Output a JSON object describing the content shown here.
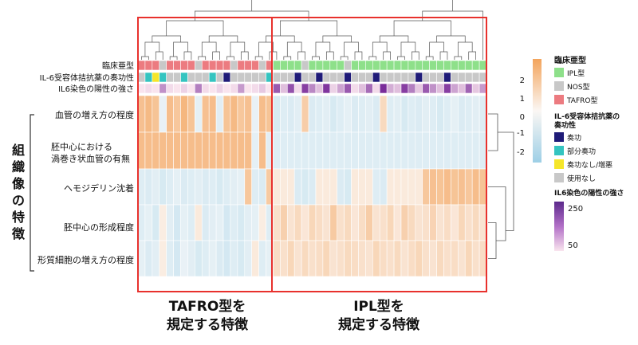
{
  "row_labels": [
    "血管の増え方の程度",
    "胚中心における",
    "渦巻き状血管の有無",
    "ヘモジデリン沈着",
    "胚中心の形成程度",
    "形質細胞の増え方の程度"
  ],
  "annotation_labels": [
    "臨床亜型",
    "IL-6受容体拮抗薬の奏功性",
    "IL6染色の陽性の強さ"
  ],
  "side_title": "組織像の特徴",
  "captions": {
    "tafro": [
      "TAFRO型を",
      "規定する特徴"
    ],
    "ipl": [
      "IPL型を",
      "規定する特徴"
    ]
  },
  "legends": {
    "colorbar_ticks": [
      "2",
      "1",
      "0",
      "-1",
      "-2"
    ],
    "subtype": {
      "title": "臨床亜型",
      "items": [
        {
          "label": "IPL型",
          "color": "#8ee08a"
        },
        {
          "label": "NOS型",
          "color": "#c8c8c8"
        },
        {
          "label": "TAFRO型",
          "color": "#ec7b80"
        }
      ]
    },
    "response": {
      "title": [
        "IL-6受容体拮抗薬の",
        "奏功性"
      ],
      "items": [
        {
          "label": "奏功",
          "color": "#1f1b78"
        },
        {
          "label": "部分奏功",
          "color": "#34c4c0"
        },
        {
          "label": "奏功なし/増悪",
          "color": "#f5e62a"
        },
        {
          "label": "使用なし",
          "color": "#c8c8c8"
        }
      ]
    },
    "staining": {
      "title": "IL6染色の陽性の強さ",
      "ticks": [
        "250",
        "50"
      ]
    }
  },
  "colors": {
    "high": "#f3a45c",
    "mid": "#fbe6d6",
    "low": "#9dcfe6",
    "highlight_box": "#e8312d"
  },
  "chart_data": {
    "type": "heatmap",
    "color_range": [
      -2.5,
      2.5
    ],
    "groups": [
      {
        "name": "TAFRO型を規定する特徴",
        "columns": 19
      },
      {
        "name": "IPL型を規定する特徴",
        "columns": 30
      }
    ],
    "rows": [
      "血管の増え方の程度",
      "胚中心における渦巻き状血管の有無",
      "ヘモジデリン沈着",
      "胚中心の形成程度",
      "形質細胞の増え方の程度"
    ],
    "values": [
      [
        1.6,
        1.8,
        1.5,
        -0.3,
        1.7,
        1.4,
        1.9,
        1.5,
        -0.4,
        1.6,
        1.7,
        -0.5,
        1.5,
        1.8,
        1.4,
        1.6,
        -0.3,
        1.7,
        1.5,
        -0.8,
        -0.6,
        -0.7,
        -0.5,
        1.2,
        -0.7,
        -0.6,
        -0.5,
        -0.8,
        -0.6,
        -0.4,
        -0.7,
        -0.6,
        -0.5,
        -0.7,
        0.8,
        -0.6,
        -0.5,
        -0.8,
        -0.6,
        -0.7,
        -0.5,
        -0.6,
        -0.8,
        -0.6,
        -0.4,
        -0.7,
        -0.6,
        -0.5,
        -0.6
      ],
      [
        1.7,
        1.7,
        1.7,
        1.7,
        1.7,
        1.7,
        1.7,
        1.7,
        1.7,
        1.7,
        1.7,
        1.7,
        1.7,
        1.7,
        1.7,
        1.7,
        -0.4,
        1.7,
        -0.5,
        -0.6,
        -0.6,
        -0.6,
        -0.6,
        -0.6,
        -0.6,
        -0.6,
        -0.6,
        -0.6,
        -0.6,
        -0.6,
        -0.6,
        -0.6,
        -0.6,
        -0.6,
        -0.6,
        -0.6,
        -0.6,
        -0.6,
        -0.6,
        -0.6,
        -0.6,
        -0.6,
        -0.6,
        -0.6,
        -0.6,
        -0.6,
        -0.6,
        -0.6,
        -0.6
      ],
      [
        -0.6,
        -0.7,
        -0.5,
        -0.8,
        -0.6,
        -0.4,
        -0.7,
        -0.6,
        -0.5,
        -0.7,
        -0.6,
        -0.8,
        -0.6,
        -0.5,
        -0.4,
        1.4,
        -0.6,
        -0.7,
        1.3,
        0.3,
        0.3,
        0.3,
        -0.7,
        -0.8,
        -0.7,
        0.3,
        0.3,
        0.3,
        -0.7,
        -0.8,
        0.3,
        0.3,
        0.3,
        -0.6,
        -0.7,
        0.3,
        0.3,
        0.3,
        0.3,
        0.3,
        1.4,
        1.6,
        1.5,
        1.7,
        1.5,
        1.6,
        1.4,
        1.7,
        1.5
      ],
      [
        -0.6,
        -0.4,
        -0.8,
        0.2,
        -0.5,
        -0.9,
        -0.4,
        -0.6,
        0.3,
        -0.7,
        -0.5,
        -0.4,
        -0.9,
        -0.6,
        -0.8,
        -0.5,
        -0.4,
        0.2,
        -0.6,
        0.6,
        1.1,
        0.5,
        0.8,
        0.4,
        0.9,
        0.7,
        0.5,
        1.3,
        0.6,
        0.8,
        0.4,
        0.7,
        1.2,
        0.5,
        0.6,
        0.9,
        0.4,
        1.1,
        0.8,
        0.5,
        0.6,
        1.0,
        0.5,
        0.7,
        0.4,
        0.9,
        0.6,
        0.8,
        0.5
      ],
      [
        -0.4,
        -0.7,
        -0.5,
        0.2,
        -0.6,
        -0.9,
        -0.3,
        -0.5,
        -0.8,
        -0.6,
        -0.4,
        -0.7,
        -0.9,
        -0.6,
        -0.8,
        -0.5,
        0.3,
        -0.6,
        -0.4,
        0.7,
        0.6,
        0.9,
        0.5,
        0.8,
        0.6,
        0.7,
        0.9,
        0.5,
        0.6,
        0.8,
        0.7,
        0.6,
        0.5,
        0.9,
        0.7,
        0.6,
        0.8,
        0.5,
        0.7,
        0.9,
        0.6,
        0.5,
        0.8,
        0.6,
        0.7,
        0.5,
        0.9,
        0.6,
        0.7
      ]
    ],
    "annotations": {
      "subtype": [
        "TAFRO",
        "TAFRO",
        "TAFRO",
        "NOS",
        "TAFRO",
        "TAFRO",
        "TAFRO",
        "TAFRO",
        "NOS",
        "TAFRO",
        "TAFRO",
        "TAFRO",
        "TAFRO",
        "NOS",
        "TAFRO",
        "TAFRO",
        "TAFRO",
        "NOS",
        "TAFRO",
        "IPL",
        "IPL",
        "IPL",
        "IPL",
        "NOS",
        "IPL",
        "IPL",
        "IPL",
        "IPL",
        "IPL",
        "NOS",
        "IPL",
        "IPL",
        "IPL",
        "IPL",
        "IPL",
        "IPL",
        "IPL",
        "IPL",
        "IPL",
        "IPL",
        "IPL",
        "IPL",
        "IPL",
        "IPL",
        "IPL",
        "IPL",
        "IPL",
        "IPL",
        "IPL"
      ],
      "response": [
        "使用なし",
        "部分奏功",
        "奏功なし/増悪",
        "部分奏功",
        "使用なし",
        "使用なし",
        "部分奏功",
        "使用なし",
        "使用なし",
        "使用なし",
        "部分奏功",
        "使用なし",
        "奏功",
        "使用なし",
        "使用なし",
        "使用なし",
        "使用なし",
        "使用なし",
        "部分奏功",
        "使用なし",
        "使用なし",
        "使用なし",
        "奏功",
        "使用なし",
        "使用なし",
        "奏功",
        "使用なし",
        "使用なし",
        "使用なし",
        "奏功",
        "使用なし",
        "使用なし",
        "使用なし",
        "奏功",
        "使用なし",
        "使用なし",
        "使用なし",
        "使用なし",
        "使用なし",
        "奏功",
        "使用なし",
        "使用なし",
        "使用なし",
        "奏功",
        "使用なし",
        "使用なし",
        "使用なし",
        "使用なし",
        "使用なし"
      ],
      "staining": [
        50,
        60,
        50,
        140,
        60,
        50,
        70,
        50,
        160,
        60,
        50,
        70,
        50,
        60,
        130,
        50,
        60,
        80,
        50,
        200,
        90,
        210,
        60,
        230,
        150,
        90,
        240,
        70,
        120,
        200,
        60,
        90,
        180,
        60,
        250,
        110,
        90,
        230,
        160,
        80,
        200,
        140,
        90,
        230,
        120,
        90,
        190,
        80,
        130
      ]
    }
  }
}
